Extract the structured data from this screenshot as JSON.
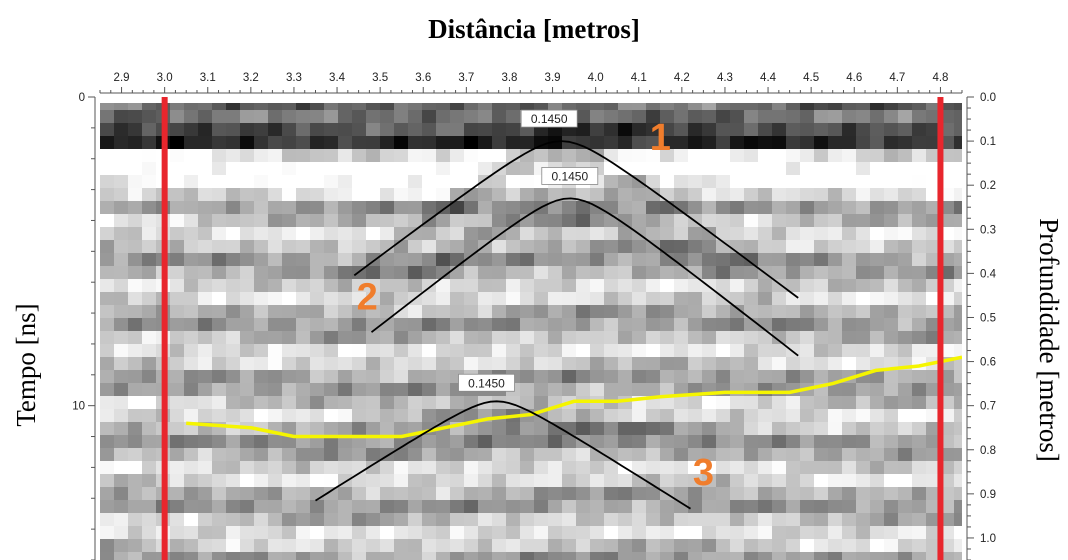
{
  "chart_data": {
    "type": "heatmap",
    "title": "Distância [metros]",
    "ylabel_left": "Tempo [ns]",
    "ylabel_right": "Profundidade [metros]",
    "x_ticks": [
      "2.9",
      "3.0",
      "3.1",
      "3.2",
      "3.3",
      "3.4",
      "3.5",
      "3.6",
      "3.7",
      "3.8",
      "3.9",
      "4.0",
      "4.1",
      "4.2",
      "4.3",
      "4.4",
      "4.5",
      "4.6",
      "4.7",
      "4.8"
    ],
    "x_range": [
      2.85,
      4.85
    ],
    "time_ticks": [
      "0",
      "10"
    ],
    "time_range_ns": [
      0,
      15
    ],
    "depth_ticks": [
      "0.0",
      "0.1",
      "0.2",
      "0.3",
      "0.4",
      "0.5",
      "0.6",
      "0.7",
      "0.8",
      "0.9",
      "1.0"
    ],
    "depth_range": [
      0.0,
      1.05
    ],
    "markers": [
      3.0,
      4.8
    ],
    "marker_color": "#e8262d",
    "hyperbolas": [
      {
        "label": "1",
        "velocity_label": "0.1450",
        "apex_x": 3.92,
        "apex_depth": 0.1,
        "x_from": 3.44,
        "x_to": 4.47
      },
      {
        "label": "",
        "velocity_label": "0.1450",
        "apex_x": 3.94,
        "apex_depth": 0.23,
        "x_from": 3.48,
        "x_to": 4.47
      },
      {
        "label": "3",
        "velocity_label": "0.1450",
        "apex_x": 3.77,
        "apex_depth": 0.69,
        "x_from": 3.35,
        "x_to": 4.22
      }
    ],
    "extra_labels": [
      {
        "text": "2",
        "x": 3.47,
        "depth": 0.45
      }
    ],
    "label_color": "#f07d2c",
    "interface_line": {
      "color": "#f5f500",
      "x": [
        3.05,
        3.2,
        3.3,
        3.45,
        3.55,
        3.65,
        3.75,
        3.85,
        3.95,
        4.05,
        4.15,
        4.3,
        4.45,
        4.55,
        4.65,
        4.75,
        4.85
      ],
      "depth": [
        0.74,
        0.75,
        0.77,
        0.77,
        0.77,
        0.75,
        0.73,
        0.72,
        0.69,
        0.69,
        0.68,
        0.67,
        0.67,
        0.65,
        0.62,
        0.61,
        0.59
      ]
    }
  }
}
